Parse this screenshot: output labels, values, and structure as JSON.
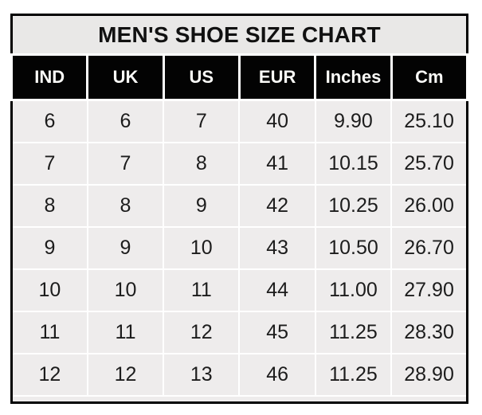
{
  "page_title": "MEN'S SHOE SIZE CHART",
  "chart_data": {
    "type": "table",
    "title": "MEN'S SHOE SIZE CHART",
    "columns": [
      "IND",
      "UK",
      "US",
      "EUR",
      "Inches",
      "Cm"
    ],
    "rows": [
      [
        "6",
        "6",
        "7",
        "40",
        "9.90",
        "25.10"
      ],
      [
        "7",
        "7",
        "8",
        "41",
        "10.15",
        "25.70"
      ],
      [
        "8",
        "8",
        "9",
        "42",
        "10.25",
        "26.00"
      ],
      [
        "9",
        "9",
        "10",
        "43",
        "10.50",
        "26.70"
      ],
      [
        "10",
        "10",
        "11",
        "44",
        "11.00",
        "27.90"
      ],
      [
        "11",
        "11",
        "12",
        "45",
        "11.25",
        "28.30"
      ],
      [
        "12",
        "12",
        "13",
        "46",
        "11.25",
        "28.90"
      ]
    ]
  },
  "colors": {
    "page_bg": "#ffffff",
    "outer_border": "#000000",
    "title_bg": "#e9e8e7",
    "title_text": "#111111",
    "header_bg": "#030303",
    "header_text": "#fbfbf8",
    "cell_bg": "#eeecec",
    "cell_text": "#1c1c1c",
    "grid_lines": "#ffffff"
  }
}
